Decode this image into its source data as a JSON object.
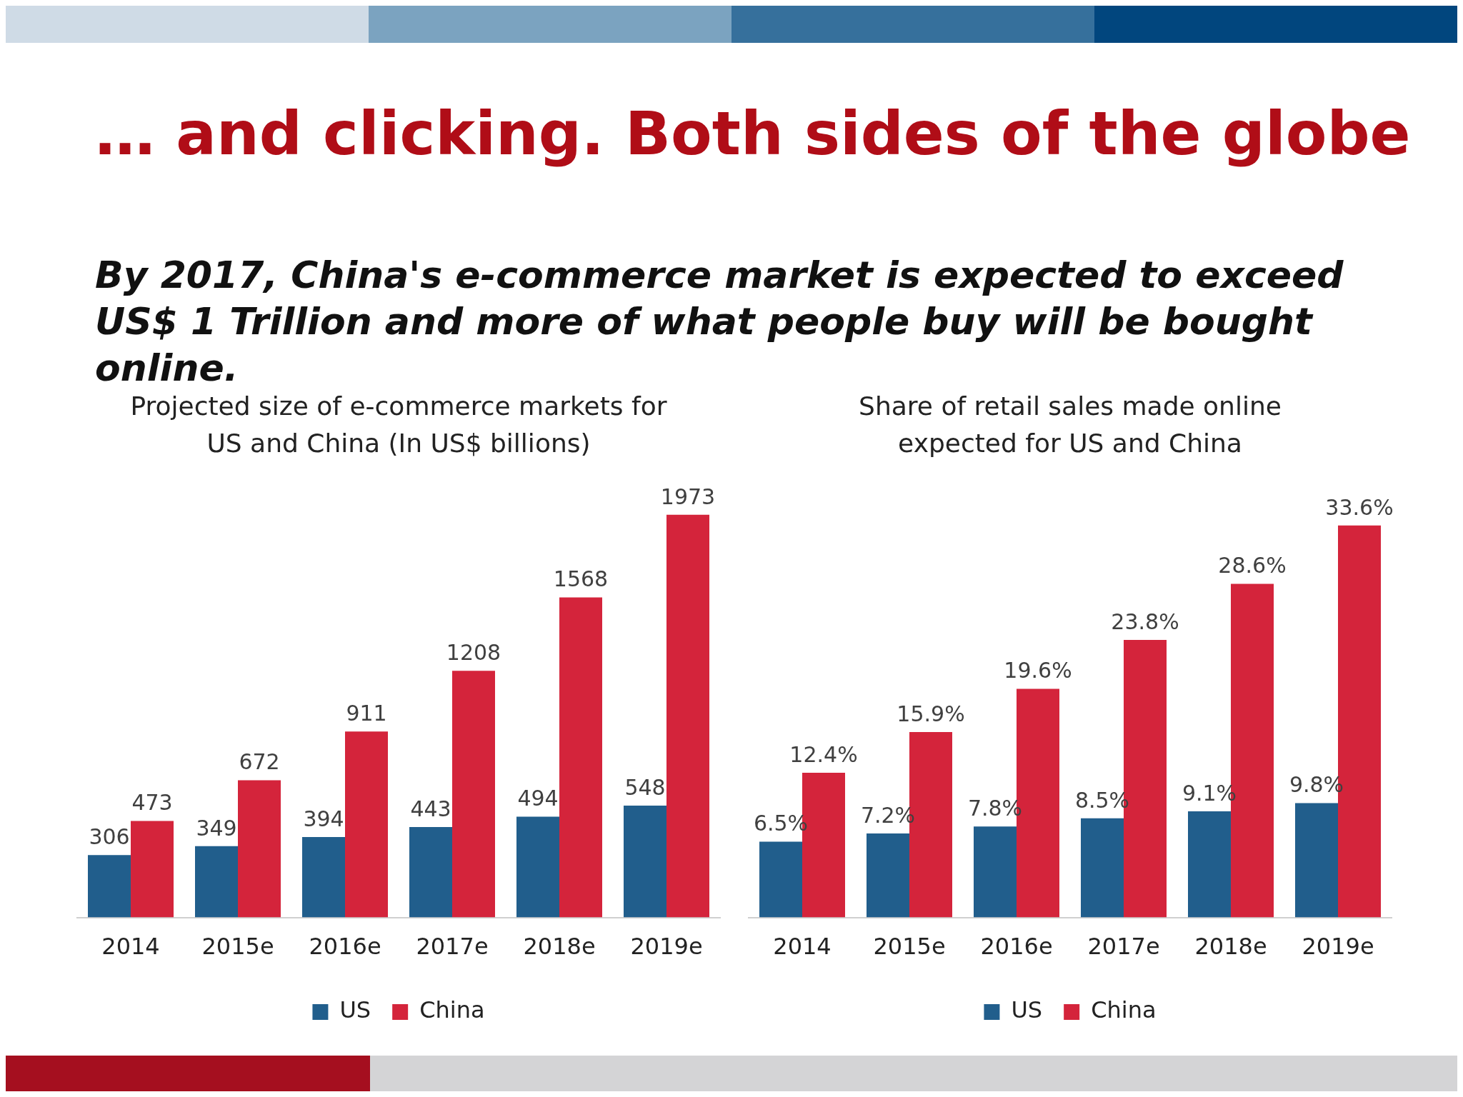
{
  "chart_data": [
    {
      "type": "bar",
      "title": "Projected size of e-commerce markets for US and China (In US$ billions)",
      "annotations": [
        "… and clicking. Both sides of the globe",
        "By 2017, China's e-commerce market is expected to exceed US$ 1 Trillion and more of what people buy will be bought online."
      ],
      "categories": [
        "2014",
        "2015e",
        "2016e",
        "2017e",
        "2018e",
        "2019e"
      ],
      "series": [
        {
          "name": "US",
          "color": "#215e8c",
          "values": [
            306,
            349,
            394,
            443,
            494,
            548
          ]
        },
        {
          "name": "China",
          "color": "#d4243b",
          "values": [
            473,
            672,
            911,
            1208,
            1568,
            1973
          ]
        }
      ],
      "data_labels": true,
      "grid": false,
      "legend": "bottom",
      "tick_labels": "x"
    },
    {
      "type": "bar",
      "title": "Share of retail sales made online expected for US and China",
      "categories": [
        "2014",
        "2015e",
        "2016e",
        "2017e",
        "2018e",
        "2019e"
      ],
      "series": [
        {
          "name": "US",
          "color": "#215e8c",
          "values": [
            6.5,
            7.2,
            7.8,
            8.5,
            9.1,
            9.8
          ],
          "value_labels": [
            "6.5%",
            "7.2%",
            "7.8%",
            "8.5%",
            "9.1%",
            "9.8%"
          ]
        },
        {
          "name": "China",
          "color": "#d4243b",
          "values": [
            12.4,
            15.9,
            19.6,
            23.8,
            28.6,
            33.6
          ],
          "value_labels": [
            "12.4%",
            "15.9%",
            "19.6%",
            "23.8%",
            "28.6%",
            "33.6%"
          ]
        }
      ],
      "grid": false,
      "legend": "bottom",
      "tick_labels": "x"
    }
  ]
}
